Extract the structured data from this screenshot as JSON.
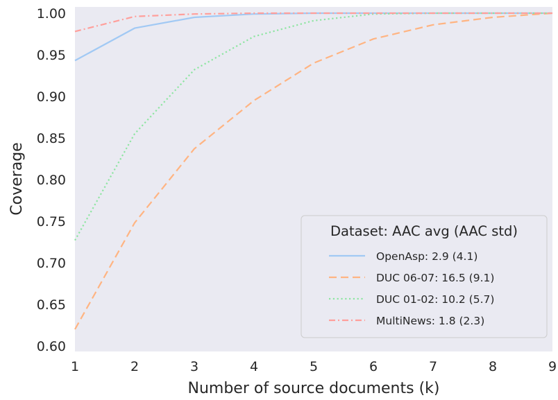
{
  "chart_data": {
    "type": "line",
    "title": "",
    "xlabel": "Number of source documents (k)",
    "ylabel": "Coverage",
    "x": [
      1,
      2,
      3,
      4,
      5,
      6,
      7,
      8,
      9
    ],
    "xlim": [
      1,
      9
    ],
    "ylim": [
      0.6,
      1.0
    ],
    "xticks": [
      "1",
      "2",
      "3",
      "4",
      "5",
      "6",
      "7",
      "8",
      "9"
    ],
    "yticks": [
      "0.60",
      "0.65",
      "0.70",
      "0.75",
      "0.80",
      "0.85",
      "0.90",
      "0.95",
      "1.00"
    ],
    "grid": false,
    "legend": {
      "title": "Dataset: AAC avg (AAC std)",
      "placement": "lower-right"
    },
    "series": [
      {
        "name": "OpenAsp: 2.9 (4.1)",
        "color": "#a1c9f4",
        "style": "solid",
        "values": [
          0.943,
          0.982,
          0.995,
          0.999,
          1.0,
          1.0,
          1.0,
          1.0,
          1.0
        ]
      },
      {
        "name": "DUC 06-07: 16.5 (9.1)",
        "color": "#ffb482",
        "style": "dashed",
        "values": [
          0.62,
          0.748,
          0.837,
          0.895,
          0.94,
          0.969,
          0.986,
          0.995,
          1.0
        ]
      },
      {
        "name": "DUC 01-02: 10.2 (5.7)",
        "color": "#8de5a1",
        "style": "dotted",
        "values": [
          0.727,
          0.855,
          0.932,
          0.972,
          0.991,
          0.999,
          1.0,
          1.0,
          1.0
        ]
      },
      {
        "name": "MultiNews: 1.8 (2.3)",
        "color": "#ff9f9b",
        "style": "dashdot",
        "values": [
          0.978,
          0.996,
          0.999,
          1.0,
          1.0,
          1.0,
          1.0,
          1.0,
          1.0
        ]
      }
    ]
  },
  "colors": {
    "plot_background": "#eaeaf2",
    "legend_background": "#eaeaf2",
    "legend_border": "#cccccc",
    "text": "#262626"
  }
}
